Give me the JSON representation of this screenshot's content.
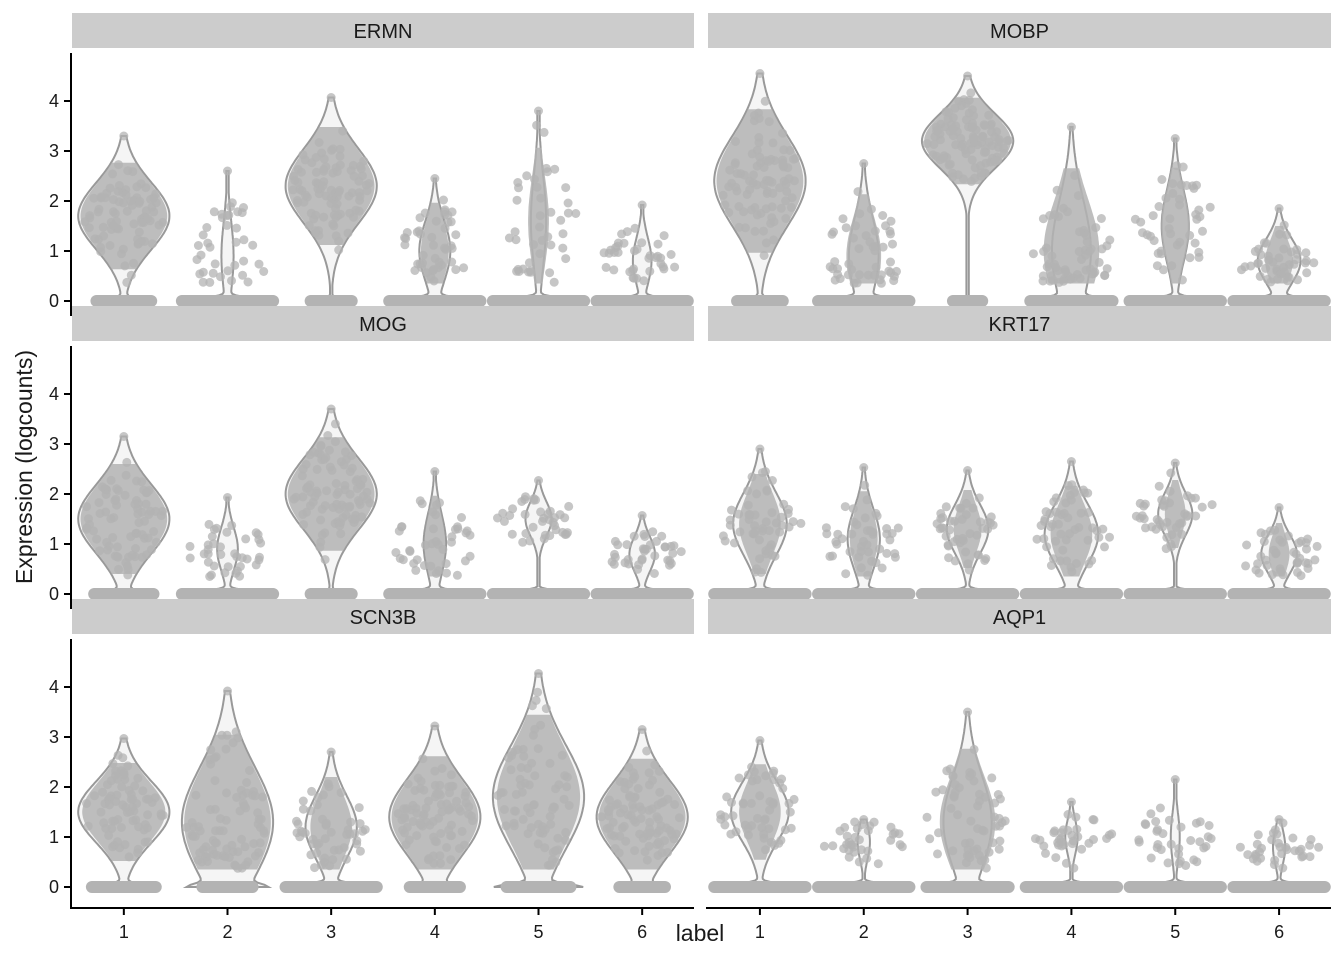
{
  "chart_data": {
    "type": "violin",
    "facet_layout": {
      "rows": 3,
      "cols": 2
    },
    "xlabel": "label",
    "ylabel": "Expression (logcounts)",
    "categories": [
      "1",
      "2",
      "3",
      "4",
      "5",
      "6"
    ],
    "ylim": [
      -0.1,
      4.8
    ],
    "yticks": [
      0,
      1,
      2,
      3,
      4
    ],
    "colors": {
      "points": "#b3b3b3",
      "violin_outline": "#999999",
      "violin_fill": "#f5f5f5",
      "strip": "#cccccc"
    },
    "panels": [
      {
        "gene": "ERMN",
        "groups": [
          {
            "label": "1",
            "max": 3.3,
            "median": 1.7,
            "frac_zero": 0.3
          },
          {
            "label": "2",
            "max": 2.6,
            "median": 0.9,
            "frac_zero": 0.9
          },
          {
            "label": "3",
            "max": 4.07,
            "median": 2.3,
            "frac_zero": 0.15
          },
          {
            "label": "4",
            "max": 2.45,
            "median": 1.0,
            "frac_zero": 0.8
          },
          {
            "label": "5",
            "max": 3.8,
            "median": 1.6,
            "frac_zero": 0.85
          },
          {
            "label": "6",
            "max": 1.92,
            "median": 0.8,
            "frac_zero": 0.9
          }
        ]
      },
      {
        "gene": "MOBP",
        "groups": [
          {
            "label": "1",
            "max": 4.55,
            "median": 2.4,
            "frac_zero": 0.2
          },
          {
            "label": "2",
            "max": 2.75,
            "median": 0.9,
            "frac_zero": 0.75
          },
          {
            "label": "3",
            "max": 4.5,
            "median": 3.2,
            "frac_zero": 0.02
          },
          {
            "label": "4",
            "max": 3.48,
            "median": 1.0,
            "frac_zero": 0.6
          },
          {
            "label": "5",
            "max": 3.25,
            "median": 1.5,
            "frac_zero": 0.8
          },
          {
            "label": "6",
            "max": 1.85,
            "median": 0.8,
            "frac_zero": 0.8
          }
        ]
      },
      {
        "gene": "MOG",
        "groups": [
          {
            "label": "1",
            "max": 3.15,
            "median": 1.5,
            "frac_zero": 0.35
          },
          {
            "label": "2",
            "max": 1.93,
            "median": 0.9,
            "frac_zero": 0.9
          },
          {
            "label": "3",
            "max": 3.7,
            "median": 2.0,
            "frac_zero": 0.15
          },
          {
            "label": "4",
            "max": 2.45,
            "median": 1.0,
            "frac_zero": 0.85
          },
          {
            "label": "5",
            "max": 2.27,
            "median": 1.5,
            "frac_zero": 0.9
          },
          {
            "label": "6",
            "max": 1.57,
            "median": 0.8,
            "frac_zero": 0.9
          }
        ]
      },
      {
        "gene": "KRT17",
        "groups": [
          {
            "label": "1",
            "max": 2.9,
            "median": 1.4,
            "frac_zero": 0.7
          },
          {
            "label": "2",
            "max": 2.53,
            "median": 1.1,
            "frac_zero": 0.8
          },
          {
            "label": "3",
            "max": 2.47,
            "median": 1.3,
            "frac_zero": 0.8
          },
          {
            "label": "4",
            "max": 2.65,
            "median": 1.2,
            "frac_zero": 0.7
          },
          {
            "label": "5",
            "max": 2.62,
            "median": 1.6,
            "frac_zero": 0.85
          },
          {
            "label": "6",
            "max": 1.73,
            "median": 0.8,
            "frac_zero": 0.85
          }
        ]
      },
      {
        "gene": "SCN3B",
        "groups": [
          {
            "label": "1",
            "max": 2.97,
            "median": 1.5,
            "frac_zero": 0.4
          },
          {
            "label": "2",
            "max": 3.92,
            "median": 1.3,
            "frac_zero": 0.25
          },
          {
            "label": "3",
            "max": 2.7,
            "median": 1.2,
            "frac_zero": 0.7
          },
          {
            "label": "4",
            "max": 3.22,
            "median": 1.4,
            "frac_zero": 0.25
          },
          {
            "label": "5",
            "max": 4.27,
            "median": 1.8,
            "frac_zero": 0.4
          },
          {
            "label": "6",
            "max": 3.15,
            "median": 1.4,
            "frac_zero": 0.2
          }
        ]
      },
      {
        "gene": "AQP1",
        "groups": [
          {
            "label": "1",
            "max": 2.93,
            "median": 1.5,
            "frac_zero": 0.7
          },
          {
            "label": "2",
            "max": 1.35,
            "median": 0.9,
            "frac_zero": 0.95
          },
          {
            "label": "3",
            "max": 3.5,
            "median": 1.3,
            "frac_zero": 0.6
          },
          {
            "label": "4",
            "max": 1.7,
            "median": 1.0,
            "frac_zero": 0.95
          },
          {
            "label": "5",
            "max": 2.15,
            "median": 1.0,
            "frac_zero": 0.95
          },
          {
            "label": "6",
            "max": 1.35,
            "median": 0.8,
            "frac_zero": 0.95
          }
        ]
      }
    ]
  }
}
